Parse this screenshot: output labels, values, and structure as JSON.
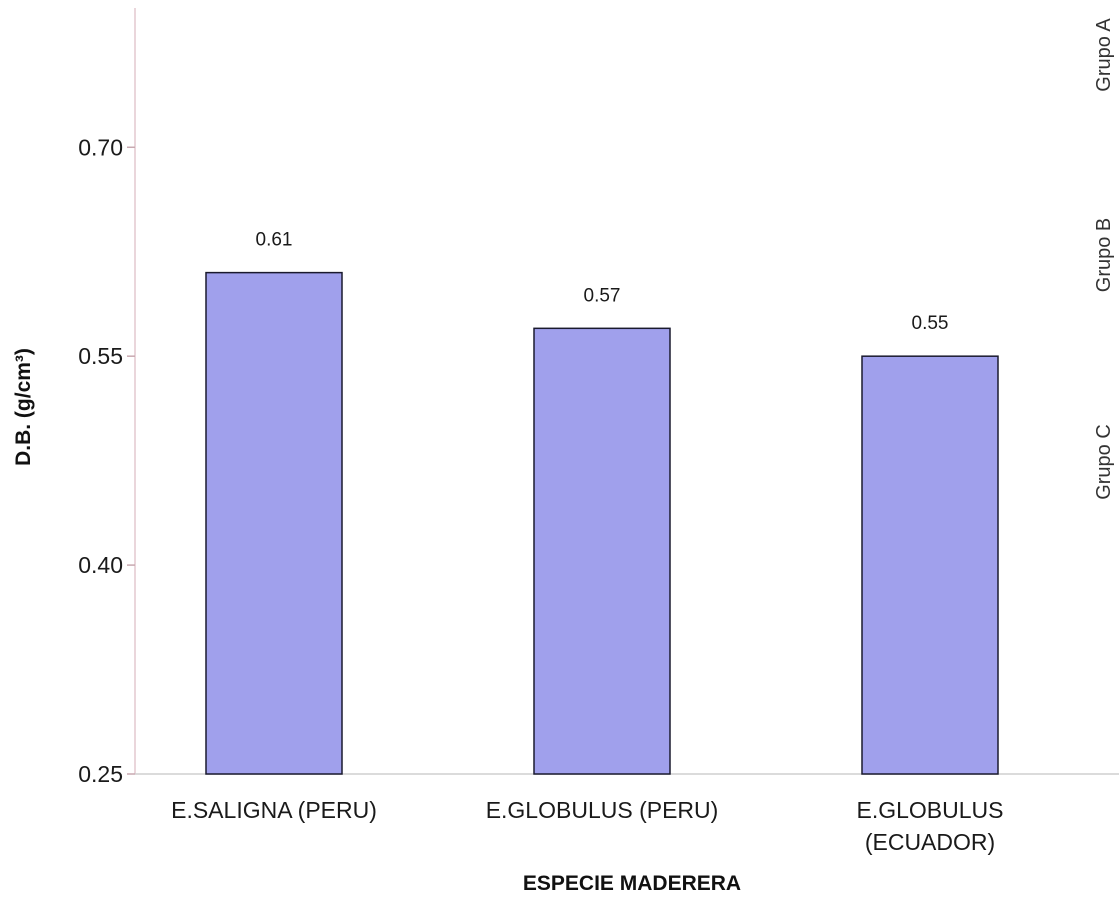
{
  "chart_data": {
    "type": "bar",
    "categories": [
      [
        "E.SALIGNA (PERU)"
      ],
      [
        "E.GLOBULUS (PERU)"
      ],
      [
        "E.GLOBULUS",
        "(ECUADOR)"
      ]
    ],
    "values": [
      0.61,
      0.57,
      0.55
    ],
    "data_labels": [
      "0.61",
      "0.57",
      "0.55"
    ],
    "title": "",
    "xlabel": "ESPECIE MADERERA",
    "ylabel": "D.B. (g/cm³)",
    "ylim": [
      0.25,
      0.8
    ],
    "yticks": [
      0.25,
      0.4,
      0.55,
      0.7
    ],
    "ytick_labels": [
      "0.25",
      "0.40",
      "0.55",
      "0.70"
    ],
    "grid": false,
    "legend": "none",
    "bar_color": "#a0a0ec",
    "bar_edge_color": "#1a1a2e",
    "group_labels": [
      "Grupo A",
      "Grupo B",
      "Grupo C"
    ]
  }
}
